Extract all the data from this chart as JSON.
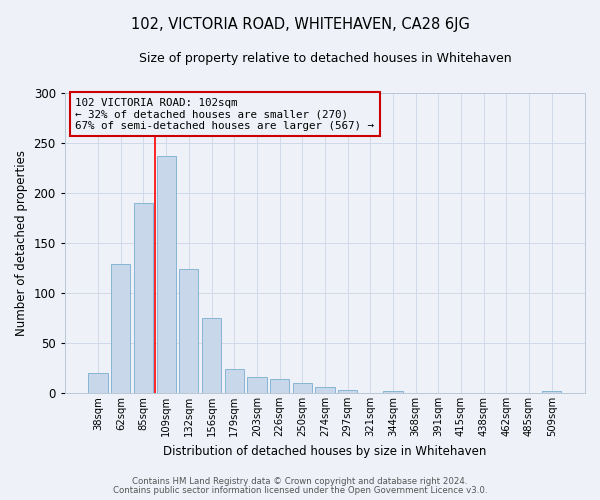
{
  "title": "102, VICTORIA ROAD, WHITEHAVEN, CA28 6JG",
  "subtitle": "Size of property relative to detached houses in Whitehaven",
  "xlabel": "Distribution of detached houses by size in Whitehaven",
  "ylabel": "Number of detached properties",
  "footer_line1": "Contains HM Land Registry data © Crown copyright and database right 2024.",
  "footer_line2": "Contains public sector information licensed under the Open Government Licence v3.0.",
  "bar_labels": [
    "38sqm",
    "62sqm",
    "85sqm",
    "109sqm",
    "132sqm",
    "156sqm",
    "179sqm",
    "203sqm",
    "226sqm",
    "250sqm",
    "274sqm",
    "297sqm",
    "321sqm",
    "344sqm",
    "368sqm",
    "391sqm",
    "415sqm",
    "438sqm",
    "462sqm",
    "485sqm",
    "509sqm"
  ],
  "bar_values": [
    20,
    129,
    190,
    237,
    124,
    75,
    24,
    16,
    14,
    10,
    6,
    3,
    0,
    2,
    0,
    0,
    0,
    0,
    0,
    0,
    2
  ],
  "bar_color": "#c8d8ea",
  "bar_edgecolor": "#7aaed0",
  "bar_linewidth": 0.6,
  "ylim": [
    0,
    300
  ],
  "yticks": [
    0,
    50,
    100,
    150,
    200,
    250,
    300
  ],
  "grid_color": "#d0dae8",
  "bg_color": "#eef2f8",
  "red_line_index": 3,
  "annotation_text_line1": "102 VICTORIA ROAD: 102sqm",
  "annotation_text_line2": "← 32% of detached houses are smaller (270)",
  "annotation_text_line3": "67% of semi-detached houses are larger (567) →",
  "annotation_box_color": "#cc0000",
  "fig_width": 6.0,
  "fig_height": 5.0
}
